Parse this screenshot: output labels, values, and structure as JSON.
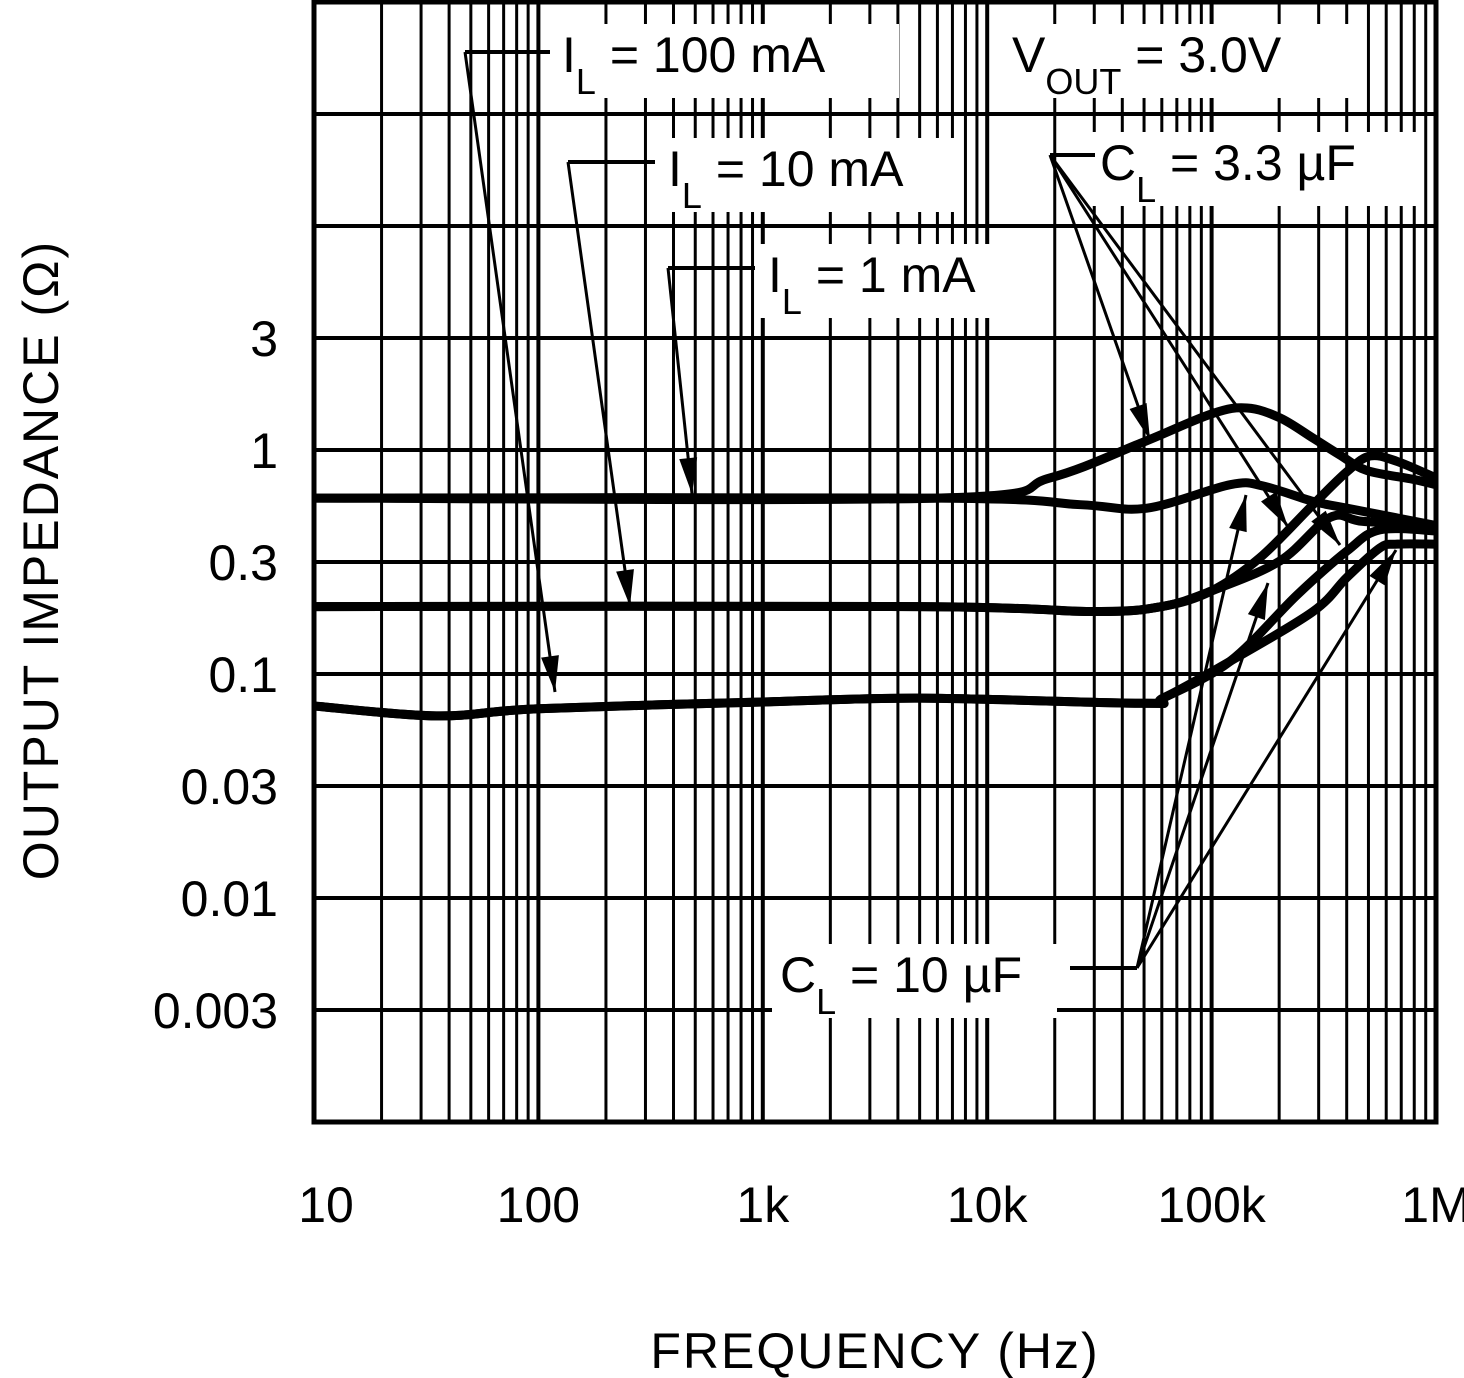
{
  "chart_data": {
    "type": "line",
    "title": "",
    "xlabel": "FREQUENCY (Hz)",
    "ylabel": "OUTPUT IMPEDANCE (Ω)",
    "xscale": "log",
    "yscale": "log",
    "xlim": [
      10,
      1000000
    ],
    "ylim": [
      0.001,
      100
    ],
    "grid": true,
    "x_ticks": [
      {
        "value": 10,
        "label": "10"
      },
      {
        "value": 100,
        "label": "100"
      },
      {
        "value": 1000,
        "label": "1k"
      },
      {
        "value": 10000,
        "label": "10k"
      },
      {
        "value": 100000,
        "label": "100k"
      },
      {
        "value": 1000000,
        "label": "1M"
      }
    ],
    "y_ticks": [
      {
        "value": 3,
        "label": "3"
      },
      {
        "value": 1,
        "label": "1"
      },
      {
        "value": 0.3,
        "label": "0.3"
      },
      {
        "value": 0.1,
        "label": "0.1"
      },
      {
        "value": 0.03,
        "label": "0.03"
      },
      {
        "value": 0.01,
        "label": "0.01"
      },
      {
        "value": 0.003,
        "label": "0.003"
      }
    ],
    "series": [
      {
        "name": "IL = 1 mA, CL = 3.3 µF",
        "points": [
          [
            10,
            0.61
          ],
          [
            6000,
            0.61
          ],
          [
            19000,
            0.75
          ],
          [
            48000,
            1.07
          ],
          [
            100000,
            1.45
          ],
          [
            144000,
            1.54
          ],
          [
            202000,
            1.39
          ],
          [
            283000,
            1.13
          ],
          [
            373000,
            0.95
          ],
          [
            492000,
            0.81
          ],
          [
            791000,
            0.74
          ],
          [
            1000000,
            0.7
          ]
        ]
      },
      {
        "name": "IL = 1 mA, CL = 10 µF",
        "points": [
          [
            10,
            0.61
          ],
          [
            6000,
            0.61
          ],
          [
            26000,
            0.57
          ],
          [
            51500,
            0.55
          ],
          [
            121000,
            0.7
          ],
          [
            170000,
            0.69
          ],
          [
            283000,
            0.59
          ],
          [
            401000,
            0.55
          ],
          [
            1000000,
            0.46
          ]
        ]
      },
      {
        "name": "IL = 10 mA, CL = 3.3 µF",
        "points": [
          [
            10,
            0.2
          ],
          [
            5000,
            0.2
          ],
          [
            30000,
            0.19
          ],
          [
            60000,
            0.2
          ],
          [
            100000,
            0.235
          ],
          [
            164000,
            0.33
          ],
          [
            283000,
            0.57
          ],
          [
            401000,
            0.8
          ],
          [
            508000,
            0.94
          ],
          [
            670000,
            0.89
          ],
          [
            1000000,
            0.75
          ]
        ]
      },
      {
        "name": "IL = 10 mA, CL = 10 µF",
        "points": [
          [
            10,
            0.2
          ],
          [
            5000,
            0.2
          ],
          [
            30000,
            0.19
          ],
          [
            60000,
            0.2
          ],
          [
            100000,
            0.235
          ],
          [
            202000,
            0.32
          ],
          [
            337000,
            0.5
          ],
          [
            473000,
            0.48
          ],
          [
            1000000,
            0.46
          ]
        ]
      },
      {
        "name": "IL = 100 mA, CL = 3.3 µF",
        "points": [
          [
            10,
            0.072
          ],
          [
            35,
            0.065
          ],
          [
            100,
            0.07
          ],
          [
            1000,
            0.075
          ],
          [
            5000,
            0.078
          ],
          [
            50000,
            0.074
          ],
          [
            60700,
            0.078
          ],
          [
            121000,
            0.114
          ],
          [
            240000,
            0.225
          ],
          [
            401000,
            0.354
          ],
          [
            562000,
            0.44
          ],
          [
            1000000,
            0.435
          ]
        ]
      },
      {
        "name": "IL = 100 mA, CL = 10 µF",
        "points": [
          [
            10,
            0.072
          ],
          [
            35,
            0.065
          ],
          [
            100,
            0.07
          ],
          [
            1000,
            0.075
          ],
          [
            5000,
            0.078
          ],
          [
            50000,
            0.074
          ],
          [
            60700,
            0.078
          ],
          [
            121000,
            0.114
          ],
          [
            283000,
            0.19
          ],
          [
            401000,
            0.27
          ],
          [
            562000,
            0.365
          ],
          [
            670000,
            0.38
          ],
          [
            1000000,
            0.38
          ]
        ]
      }
    ],
    "annotations": {
      "il100": {
        "main": "I",
        "sub": "L",
        "rest": " = 100 mA"
      },
      "il10": {
        "main": "I",
        "sub": "L",
        "rest": " = 10 mA"
      },
      "il1": {
        "main": "I",
        "sub": "L",
        "rest": " = 1 mA"
      },
      "vout": {
        "main": "V",
        "sub": "OUT",
        "rest": " = 3.0V"
      },
      "cl33": {
        "main": "C",
        "sub": "L",
        "rest": " = 3.3 µF"
      },
      "cl10": {
        "main": "C",
        "sub": "L",
        "rest": " = 10 µF"
      }
    }
  }
}
